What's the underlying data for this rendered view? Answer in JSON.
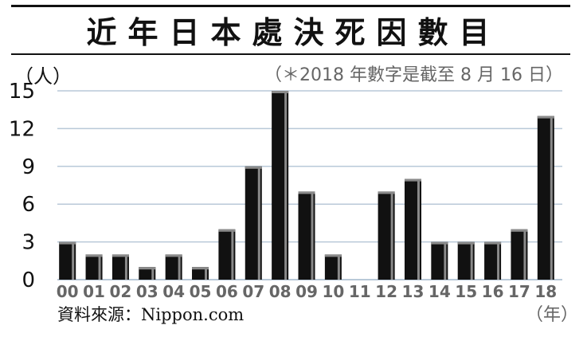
{
  "title": "近年日本處決死因數目",
  "unit_label": "（人）",
  "note": "（＊2018 年數字是截至 8 月 16 日）",
  "source": "資料來源：Nippon.com",
  "x_unit_label": "（年）",
  "colors": {
    "bar": "#111111",
    "bar_highlight": "#8a8a8a",
    "grid": "#b9c9d8",
    "tick_x": "#666666",
    "tick_y": "#111111"
  },
  "chart_data": {
    "type": "bar",
    "title": "近年日本處決死因數目",
    "xlabel": "（年）",
    "ylabel": "（人）",
    "categories": [
      "00",
      "01",
      "02",
      "03",
      "04",
      "05",
      "06",
      "07",
      "08",
      "09",
      "10",
      "11",
      "12",
      "13",
      "14",
      "15",
      "16",
      "17",
      "18"
    ],
    "values": [
      3,
      2,
      2,
      1,
      2,
      1,
      4,
      9,
      15,
      7,
      2,
      0,
      7,
      8,
      3,
      3,
      3,
      4,
      13
    ],
    "yticks": [
      0,
      3,
      6,
      9,
      12,
      15
    ],
    "ylim": [
      0,
      15
    ],
    "grid": true
  }
}
